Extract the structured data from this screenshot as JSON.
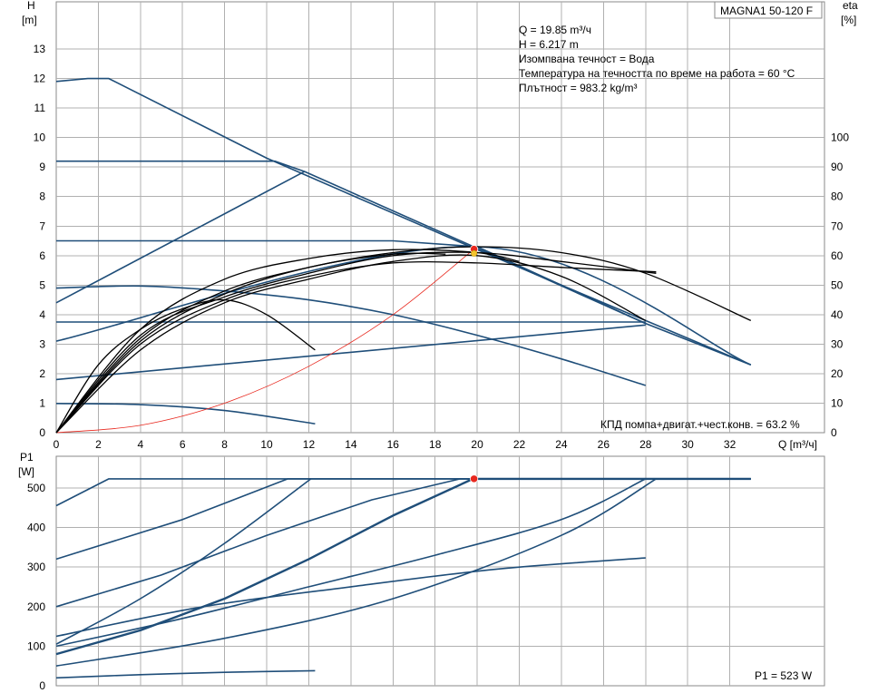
{
  "chart_data": [
    {
      "type": "line",
      "name": "upper-chart",
      "ylabel": "H",
      "ylabel_unit": "[m]",
      "y2label": "eta",
      "y2label_unit": "[%]",
      "xlabel": "Q [m³/ч]",
      "xlim": [
        0,
        36.5
      ],
      "ylim": [
        0,
        14.6
      ],
      "y2lim": [
        0,
        146
      ],
      "xticks": [
        0,
        2,
        4,
        6,
        8,
        10,
        12,
        14,
        16,
        18,
        20,
        22,
        24,
        26,
        28,
        30,
        32
      ],
      "yticks": [
        0,
        1,
        2,
        3,
        4,
        5,
        6,
        7,
        8,
        9,
        10,
        11,
        12,
        13
      ],
      "y2ticks": [
        0,
        10,
        20,
        30,
        40,
        50,
        60,
        70,
        80,
        90,
        100
      ],
      "grid": true,
      "product_label": "MAGNA1 50-120 F",
      "info_lines": [
        "Q = 19.85 m³/ч",
        "H = 6.217 m",
        "Изомпвана течност = Вода",
        "Температура на течността по време на работа = 60 °C",
        "Плътност = 983.2 kg/m³"
      ],
      "efficiency_label": "КПД помпа+двигат.+чест.конв. = 63.2 %",
      "series": [
        {
          "role": "H-curve",
          "x": [
            0,
            1.5,
            2.5,
            10,
            20,
            30,
            33
          ],
          "y": [
            11.9,
            12.0,
            12.0,
            9.3,
            6.2,
            3.2,
            2.3
          ]
        },
        {
          "role": "H-curve",
          "x": [
            0,
            10.4,
            11.8,
            20,
            28,
            33
          ],
          "y": [
            9.2,
            9.2,
            8.85,
            6.25,
            3.7,
            2.3
          ]
        },
        {
          "role": "H-curve",
          "x": [
            0,
            16,
            20,
            28
          ],
          "y": [
            6.5,
            6.5,
            6.3,
            3.7
          ]
        },
        {
          "role": "H-curve",
          "x": [
            0,
            28
          ],
          "y": [
            3.75,
            3.75
          ]
        },
        {
          "role": "H-curve",
          "x": [
            0,
            28
          ],
          "y": [
            1.8,
            3.65
          ]
        },
        {
          "role": "H-curve",
          "x": [
            0,
            11.8
          ],
          "y": [
            4.4,
            8.85
          ]
        },
        {
          "role": "H-curve",
          "x": [
            0,
            20,
            33
          ],
          "y": [
            3.1,
            6.3,
            2.3
          ]
        },
        {
          "role": "H-curve",
          "x": [
            0,
            4,
            8,
            12,
            16,
            20,
            24,
            28
          ],
          "y": [
            4.9,
            4.97,
            4.8,
            4.5,
            4.0,
            3.3,
            2.5,
            1.6
          ]
        },
        {
          "role": "H-curve",
          "x": [
            0,
            4,
            8,
            12.3
          ],
          "y": [
            0.99,
            0.95,
            0.75,
            0.3
          ]
        },
        {
          "role": "system-curve",
          "x": [
            0,
            4,
            8,
            12,
            16,
            19.85
          ],
          "y": [
            0,
            0.25,
            1.0,
            2.25,
            4.0,
            6.217
          ]
        },
        {
          "role": "efficiency",
          "x": [
            0,
            2,
            4,
            6,
            8,
            10,
            12.3
          ],
          "y": [
            0,
            23,
            35,
            42,
            45,
            40,
            28
          ]
        },
        {
          "role": "efficiency",
          "x": [
            0,
            4,
            8,
            12,
            16,
            20,
            24,
            28.5
          ],
          "y": [
            0,
            33,
            46,
            54,
            60,
            61,
            58,
            54
          ]
        },
        {
          "role": "efficiency",
          "x": [
            0,
            4,
            8,
            12,
            16,
            20,
            24,
            28,
            33
          ],
          "y": [
            0,
            32,
            48,
            56,
            61,
            63,
            61,
            54,
            38
          ]
        },
        {
          "role": "efficiency",
          "x": [
            0,
            4,
            8,
            12,
            16,
            20,
            24,
            28.5
          ],
          "y": [
            0,
            30,
            45,
            53,
            57.5,
            57.5,
            56,
            54.5
          ]
        },
        {
          "role": "efficiency",
          "x": [
            0,
            4,
            8,
            12,
            16,
            20,
            22
          ],
          "y": [
            0,
            35,
            52,
            59,
            62,
            61,
            58
          ]
        },
        {
          "role": "efficiency",
          "x": [
            0,
            4,
            8,
            12,
            16,
            20,
            24,
            28
          ],
          "y": [
            0,
            28,
            44,
            52,
            58,
            60,
            53,
            38
          ]
        },
        {
          "role": "efficiency",
          "x": [
            0,
            4,
            8,
            12,
            16,
            18.5
          ],
          "y": [
            0,
            31,
            47,
            56,
            60.5,
            60.5
          ]
        }
      ],
      "operating_point": {
        "x": 19.85,
        "y": 6.217
      }
    },
    {
      "type": "line",
      "name": "lower-chart",
      "ylabel": "P1",
      "ylabel_unit": "[W]",
      "xlim": [
        0,
        36.5
      ],
      "ylim": [
        0,
        580
      ],
      "yticks": [
        0,
        100,
        200,
        300,
        400,
        500
      ],
      "grid": true,
      "power_label": "P1 = 523 W",
      "series": [
        {
          "role": "P1",
          "x": [
            0,
            2.5,
            33
          ],
          "y": [
            455,
            523,
            523
          ]
        },
        {
          "role": "P1",
          "x": [
            0,
            6,
            11,
            33
          ],
          "y": [
            320,
            420,
            523,
            523
          ]
        },
        {
          "role": "P1",
          "x": [
            0,
            5,
            10,
            15,
            19.2,
            33
          ],
          "y": [
            200,
            280,
            380,
            470,
            523,
            523
          ]
        },
        {
          "role": "P1",
          "x": [
            0,
            4,
            8,
            12,
            16,
            19.8,
            33
          ],
          "y": [
            80,
            140,
            220,
            320,
            430,
            523,
            523
          ]
        },
        {
          "role": "P1",
          "x": [
            0,
            8,
            16,
            24,
            28.5
          ],
          "y": [
            50,
            120,
            220,
            380,
            523
          ]
        },
        {
          "role": "P1",
          "x": [
            0,
            6,
            12,
            18,
            24,
            28
          ],
          "y": [
            100,
            170,
            250,
            330,
            420,
            523
          ]
        },
        {
          "role": "P1",
          "x": [
            0,
            4,
            8,
            12.1
          ],
          "y": [
            105,
            220,
            360,
            523
          ]
        },
        {
          "role": "P1",
          "x": [
            0,
            7,
            14,
            21,
            28
          ],
          "y": [
            125,
            200,
            250,
            295,
            323
          ]
        },
        {
          "role": "P1",
          "x": [
            0,
            4,
            8,
            12.3
          ],
          "y": [
            20,
            28,
            34,
            38
          ]
        }
      ],
      "operating_point": {
        "x": 19.85,
        "y": 523
      }
    }
  ],
  "colors": {
    "curve": "#1f4e79",
    "efficiency": "#000000",
    "system": "#e8281e",
    "point": "#e8281e",
    "grid": "#b0b0b0"
  }
}
